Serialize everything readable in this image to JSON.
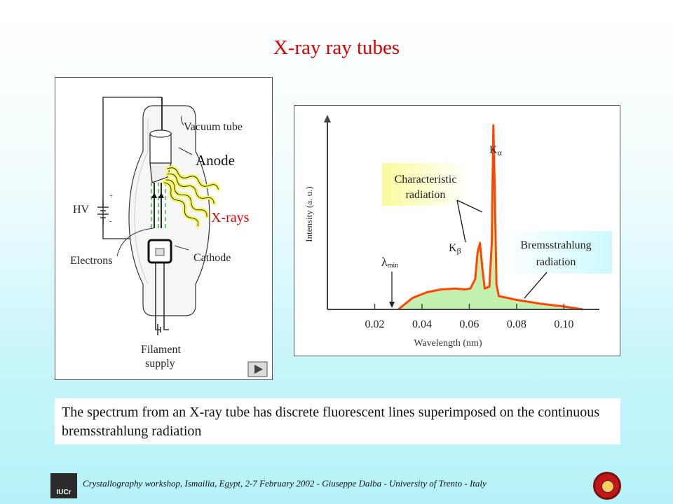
{
  "title": "X-ray ray tubes",
  "tube_diagram": {
    "labels": {
      "vacuum_tube": "Vacuum tube",
      "anode": "Anode",
      "hv": "HV",
      "x_rays": "X-rays",
      "electrons": "Electrons",
      "cathode": "Cathode",
      "filament_line1": "Filament",
      "filament_line2": "supply"
    },
    "play_icon": "play-icon"
  },
  "chart_data": {
    "type": "line",
    "title": "",
    "xlabel": "Wavelength (nm)",
    "ylabel": "Intensity (a. u.)",
    "xlim": [
      0.0,
      0.115
    ],
    "ylim": [
      0,
      1.0
    ],
    "x_ticks": [
      "0.02",
      "0.04",
      "0.06",
      "0.08",
      "0.10"
    ],
    "tick_values": [
      0.02,
      0.04,
      0.06,
      0.08,
      0.1
    ],
    "series": [
      {
        "x": [
          0.03,
          0.036,
          0.042,
          0.048,
          0.054,
          0.058,
          0.0605,
          0.0625,
          0.0635,
          0.0645,
          0.0655,
          0.0665,
          0.0685,
          0.0695,
          0.0702,
          0.0708,
          0.0715,
          0.0725,
          0.08,
          0.09,
          0.1,
          0.108
        ],
        "y": [
          0.0,
          0.06,
          0.09,
          0.105,
          0.11,
          0.105,
          0.11,
          0.16,
          0.3,
          0.35,
          0.22,
          0.11,
          0.12,
          0.35,
          0.97,
          0.6,
          0.13,
          0.07,
          0.05,
          0.03,
          0.015,
          0.0
        ]
      }
    ],
    "annotations": {
      "k_alpha": {
        "base": "K",
        "symbol": "α"
      },
      "k_beta": {
        "base": "K",
        "symbol": "β"
      },
      "lambda_min": {
        "symbol": "λ",
        "sub": "min"
      },
      "characteristic_line1": "Characteristic",
      "characteristic_line2": "radiation",
      "brems_line1": "Bremsstrahlung",
      "brems_line2": "radiation"
    },
    "colors": {
      "curve": "#ff4500",
      "fill": "#c4f0b0",
      "characteristic_bg": "#fafa9c",
      "brems_bg": "#d4fbff"
    }
  },
  "caption": "The spectrum from an X-ray tube has discrete fluorescent lines superimposed on the continuous bremsstrahlung radiation",
  "footer": "Crystallography workshop, Ismailia, Egypt, 2-7 February  2002 - Giuseppe Dalba -  University of Trento - Italy",
  "logos": {
    "left": "IUCr",
    "right": "university-seal"
  }
}
